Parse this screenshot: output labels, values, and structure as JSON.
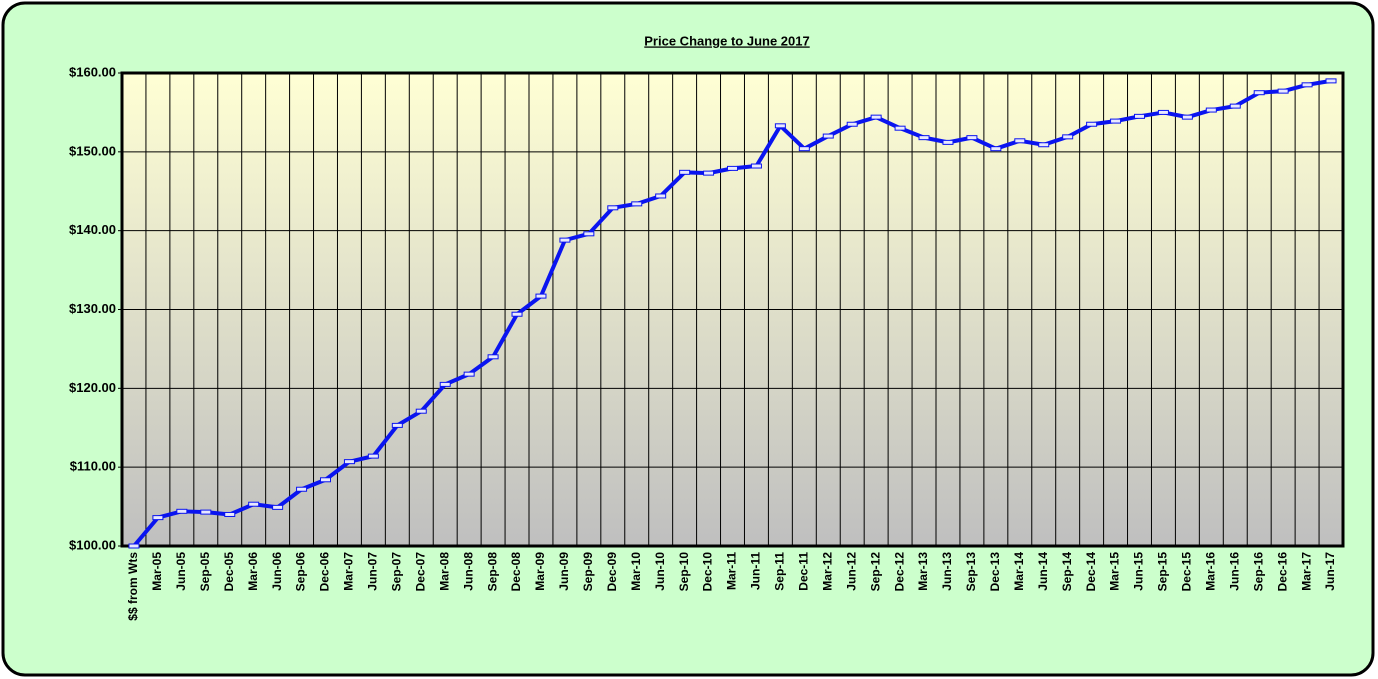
{
  "chart_data": {
    "type": "line",
    "title": "Price Change to June 2017",
    "categories": [
      "$$ from Wts",
      "Mar-05",
      "Jun-05",
      "Sep-05",
      "Dec-05",
      "Mar-06",
      "Jun-06",
      "Sep-06",
      "Dec-06",
      "Mar-07",
      "Jun-07",
      "Sep-07",
      "Dec-07",
      "Mar-08",
      "Jun-08",
      "Sep-08",
      "Dec-08",
      "Mar-09",
      "Jun-09",
      "Sep-09",
      "Dec-09",
      "Mar-10",
      "Jun-10",
      "Sep-10",
      "Dec-10",
      "Mar-11",
      "Jun-11",
      "Sep-11",
      "Dec-11",
      "Mar-12",
      "Jun-12",
      "Sep-12",
      "Dec-12",
      "Mar-13",
      "Jun-13",
      "Sep-13",
      "Dec-13",
      "Mar-14",
      "Jun-14",
      "Sep-14",
      "Dec-14",
      "Mar-15",
      "Jun-15",
      "Sep-15",
      "Dec-15",
      "Mar-16",
      "Jun-16",
      "Sep-16",
      "Dec-16",
      "Mar-17",
      "Jun-17"
    ],
    "values": [
      100,
      103.6,
      104.4,
      104.3,
      104.0,
      105.3,
      104.9,
      107.2,
      108.4,
      110.7,
      111.4,
      115.3,
      117.1,
      120.5,
      121.8,
      124.0,
      129.4,
      131.7,
      138.8,
      139.6,
      142.9,
      143.4,
      144.4,
      147.4,
      147.3,
      147.9,
      148.2,
      153.3,
      150.4,
      152.0,
      153.5,
      154.4,
      153.0,
      151.8,
      151.2,
      151.8,
      150.4,
      151.4,
      150.9,
      151.9,
      153.5,
      153.9,
      154.5,
      155.0,
      154.4,
      155.3,
      155.8,
      157.5,
      157.7,
      158.5,
      159.0
    ],
    "color": "#0a14f0",
    "ylim": [
      100,
      160
    ],
    "yticks": [
      {
        "value": 100,
        "label": "$100.00"
      },
      {
        "value": 110,
        "label": "$110.00"
      },
      {
        "value": 120,
        "label": "$120.00"
      },
      {
        "value": 130,
        "label": "$130.00"
      },
      {
        "value": 140,
        "label": "$140.00"
      },
      {
        "value": 150,
        "label": "$150.00"
      },
      {
        "value": 160,
        "label": "$160.00"
      }
    ],
    "grid": true
  }
}
